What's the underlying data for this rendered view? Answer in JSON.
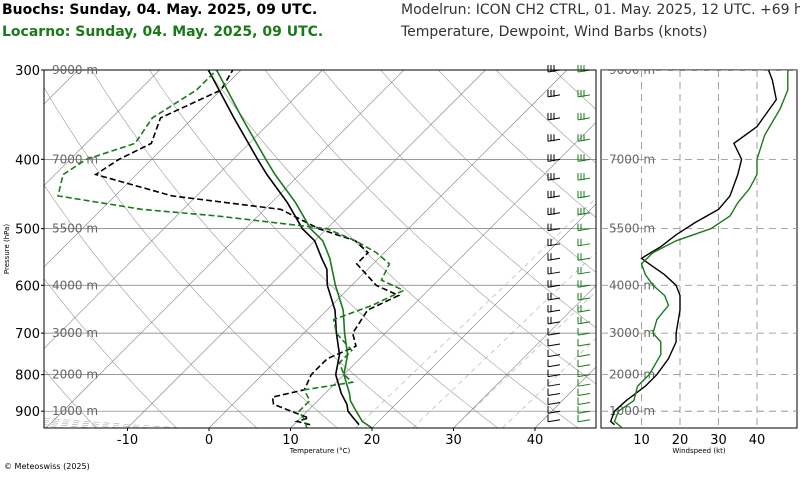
{
  "header": {
    "station1": "Buochs: Sunday, 04. May. 2025, 09 UTC.",
    "station2": "Locarno: Sunday, 04. May. 2025, 09 UTC.",
    "model": "Modelrun: ICON CH2 CTRL, 01. May. 2025, 12 UTC. +69 h",
    "variables": "Temperature, Dewpoint, Wind Barbs (knots)"
  },
  "copyright": "© Meteoswiss (2025)",
  "colors": {
    "station1": "#000000",
    "station2": "#1a7a1a",
    "grid": "#888888"
  },
  "chart_data": [
    {
      "type": "line",
      "name": "skew-t",
      "xlabel": "Temperature (°C)",
      "ylabel": "Pressure (hPa)",
      "xlim": [
        -20,
        48
      ],
      "ylim": [
        950,
        300
      ],
      "x_ticks": [
        -10,
        0,
        10,
        20,
        30,
        40
      ],
      "y_ticks": [
        300,
        400,
        500,
        600,
        700,
        800,
        900
      ],
      "height_labels": [
        {
          "p": 300,
          "label": "9000 m"
        },
        {
          "p": 400,
          "label": "7000 m"
        },
        {
          "p": 500,
          "label": "5500 m"
        },
        {
          "p": 600,
          "label": "4000 m"
        },
        {
          "p": 700,
          "label": "3000 m"
        },
        {
          "p": 800,
          "label": "2000 m"
        },
        {
          "p": 900,
          "label": "1000 m"
        }
      ],
      "series": [
        {
          "name": "Buochs",
          "kind": "temperature",
          "color": "#000000",
          "dash": false,
          "points": [
            [
              940,
              18
            ],
            [
              920,
              16.5
            ],
            [
              900,
              15
            ],
            [
              880,
              14
            ],
            [
              850,
              12
            ],
            [
              800,
              9
            ],
            [
              750,
              7
            ],
            [
              700,
              4
            ],
            [
              650,
              1
            ],
            [
              600,
              -3
            ],
            [
              570,
              -5
            ],
            [
              550,
              -7
            ],
            [
              520,
              -10
            ],
            [
              500,
              -13
            ],
            [
              460,
              -18
            ],
            [
              420,
              -24
            ],
            [
              400,
              -27
            ],
            [
              350,
              -35
            ],
            [
              300,
              -44
            ]
          ]
        },
        {
          "name": "Buochs",
          "kind": "dewpoint",
          "color": "#000000",
          "dash": true,
          "points": [
            [
              940,
              12
            ],
            [
              930,
              10
            ],
            [
              920,
              11
            ],
            [
              900,
              8
            ],
            [
              880,
              5
            ],
            [
              860,
              4
            ],
            [
              840,
              7
            ],
            [
              800,
              6
            ],
            [
              760,
              6
            ],
            [
              730,
              8
            ],
            [
              700,
              6
            ],
            [
              650,
              5
            ],
            [
              620,
              7
            ],
            [
              600,
              3
            ],
            [
              560,
              -2
            ],
            [
              540,
              -2
            ],
            [
              520,
              -5
            ],
            [
              500,
              -11
            ],
            [
              470,
              -18
            ],
            [
              450,
              -33
            ],
            [
              420,
              -45
            ],
            [
              400,
              -44
            ],
            [
              380,
              -42
            ],
            [
              350,
              -44
            ],
            [
              320,
              -40
            ],
            [
              300,
              -41
            ]
          ]
        },
        {
          "name": "Locarno",
          "kind": "temperature",
          "color": "#1a7a1a",
          "dash": false,
          "points": [
            [
              950,
              20
            ],
            [
              930,
              18
            ],
            [
              900,
              16
            ],
            [
              870,
              14
            ],
            [
              850,
              13
            ],
            [
              800,
              10
            ],
            [
              750,
              8
            ],
            [
              700,
              5
            ],
            [
              650,
              2
            ],
            [
              600,
              -2
            ],
            [
              550,
              -6
            ],
            [
              520,
              -9
            ],
            [
              500,
              -12
            ],
            [
              460,
              -17
            ],
            [
              420,
              -23
            ],
            [
              400,
              -26
            ],
            [
              350,
              -34
            ],
            [
              300,
              -43
            ]
          ]
        },
        {
          "name": "Locarno",
          "kind": "dewpoint",
          "color": "#1a7a1a",
          "dash": true,
          "points": [
            [
              950,
              12
            ],
            [
              930,
              11
            ],
            [
              900,
              9
            ],
            [
              870,
              9
            ],
            [
              840,
              7
            ],
            [
              820,
              12
            ],
            [
              800,
              10
            ],
            [
              770,
              8
            ],
            [
              740,
              8
            ],
            [
              700,
              4
            ],
            [
              670,
              2
            ],
            [
              640,
              5
            ],
            [
              610,
              7
            ],
            [
              590,
              3
            ],
            [
              560,
              2
            ],
            [
              540,
              -1
            ],
            [
              520,
              -5
            ],
            [
              500,
              -10
            ],
            [
              480,
              -25
            ],
            [
              470,
              -35
            ],
            [
              450,
              -47
            ],
            [
              420,
              -49
            ],
            [
              400,
              -48
            ],
            [
              380,
              -44
            ],
            [
              350,
              -45
            ],
            [
              320,
              -43
            ],
            [
              300,
              -43
            ]
          ]
        }
      ]
    },
    {
      "type": "line",
      "name": "wind-speed",
      "xlabel": "Windspeed (kt)",
      "xlim": [
        0,
        48
      ],
      "x_ticks": [
        10,
        20,
        30,
        40
      ],
      "height_labels": [
        "9000 m",
        "7000 m",
        "5500 m",
        "4000 m",
        "3000 m",
        "2000 m",
        "1000 m"
      ],
      "series": [
        {
          "name": "Buochs",
          "color": "#000000",
          "points": [
            [
              940,
              3
            ],
            [
              930,
              2
            ],
            [
              900,
              3
            ],
            [
              870,
              6
            ],
            [
              830,
              11
            ],
            [
              800,
              14
            ],
            [
              760,
              17
            ],
            [
              720,
              19
            ],
            [
              700,
              19
            ],
            [
              650,
              20
            ],
            [
              620,
              20
            ],
            [
              600,
              19
            ],
            [
              580,
              16
            ],
            [
              560,
              12
            ],
            [
              550,
              10
            ],
            [
              530,
              15
            ],
            [
              510,
              19
            ],
            [
              490,
              24
            ],
            [
              470,
              30
            ],
            [
              450,
              33
            ],
            [
              420,
              35
            ],
            [
              400,
              36
            ],
            [
              380,
              34
            ],
            [
              360,
              40
            ],
            [
              330,
              45
            ],
            [
              310,
              44
            ],
            [
              300,
              43
            ]
          ]
        },
        {
          "name": "Locarno",
          "color": "#1a7a1a",
          "points": [
            [
              950,
              5
            ],
            [
              930,
              3
            ],
            [
              900,
              4
            ],
            [
              870,
              8
            ],
            [
              830,
              9
            ],
            [
              800,
              12
            ],
            [
              750,
              15
            ],
            [
              720,
              15
            ],
            [
              700,
              13
            ],
            [
              670,
              14
            ],
            [
              640,
              17
            ],
            [
              620,
              16
            ],
            [
              600,
              13
            ],
            [
              580,
              11
            ],
            [
              560,
              10
            ],
            [
              540,
              13
            ],
            [
              520,
              19
            ],
            [
              500,
              28
            ],
            [
              480,
              33
            ],
            [
              460,
              35
            ],
            [
              440,
              38
            ],
            [
              420,
              40
            ],
            [
              400,
              40
            ],
            [
              370,
              42
            ],
            [
              340,
              46
            ],
            [
              320,
              48
            ],
            [
              300,
              48
            ]
          ]
        }
      ]
    }
  ]
}
